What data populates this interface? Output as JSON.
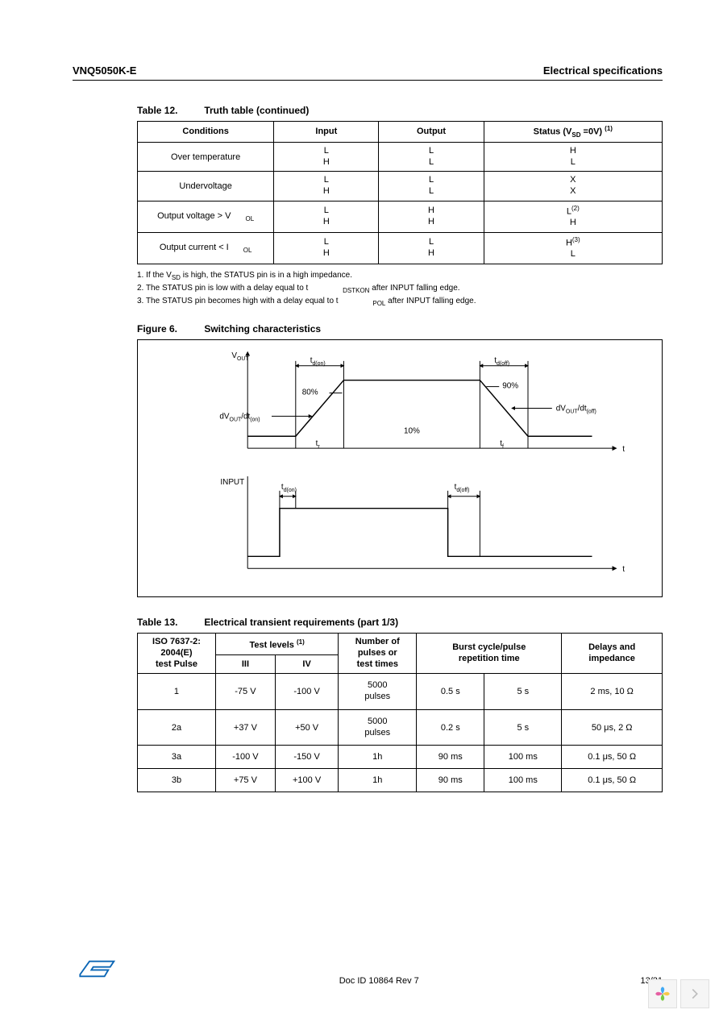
{
  "header": {
    "left": "VNQ5050K-E",
    "right": "Electrical specifications"
  },
  "table12": {
    "caption_label": "Table 12.",
    "caption_text": "Truth table (continued)",
    "headers": {
      "conditions": "Conditions",
      "input": "Input",
      "output": "Output",
      "status": "Status (V",
      "status_sub": "SD",
      "status_tail": " =0V)",
      "status_sup": "(1)"
    },
    "rows": [
      {
        "cond": "Over temperature",
        "in": [
          "L",
          "H"
        ],
        "out": [
          "L",
          "L"
        ],
        "stat": [
          "H",
          "L"
        ],
        "stat_sup": [
          "",
          ""
        ]
      },
      {
        "cond": "Undervoltage",
        "in": [
          "L",
          "H"
        ],
        "out": [
          "L",
          "L"
        ],
        "stat": [
          "X",
          "X"
        ],
        "stat_sup": [
          "",
          ""
        ]
      },
      {
        "cond_pre": "Output voltage > V",
        "cond_sub": "OL",
        "in": [
          "L",
          "H"
        ],
        "out": [
          "H",
          "H"
        ],
        "stat": [
          "L",
          "H"
        ],
        "stat_sup": [
          "(2)",
          ""
        ]
      },
      {
        "cond_pre": "Output current < I",
        "cond_sub": "OL",
        "in": [
          "L",
          "H"
        ],
        "out": [
          "L",
          "H"
        ],
        "stat": [
          "H",
          "L"
        ],
        "stat_sup": [
          "(3)",
          ""
        ]
      }
    ],
    "footnotes": {
      "n1_a": "1.   If the V",
      "n1_sub": "SD",
      "n1_b": " is high, the STATUS pin is in a high impedance.",
      "n2_a": "2.   The STATUS pin is low with a delay equal to t",
      "n2_sub": "DSTKON",
      "n2_b": " after INPUT falling edge.",
      "n3_a": "3.   The STATUS pin becomes high with a delay equal to t",
      "n3_sub": "POL",
      "n3_b": " after INPUT falling edge."
    }
  },
  "figure6": {
    "caption_label": "Figure 6.",
    "caption_text": "Switching characteristics",
    "labels": {
      "vout": "V",
      "vout_sub": "OUT",
      "input": "INPUT",
      "t": "t",
      "tdon": "t",
      "tdon_sub": "d(on)",
      "tdoff": "t",
      "tdoff_sub": "d(off)",
      "tr": "t",
      "tf": "t",
      "tr_sub": "r",
      "tf_sub": "f",
      "p80": "80%",
      "p90": "90%",
      "p10": "10%",
      "dvdt_on_a": "dV",
      "dvdt_on_b": "/dt",
      "dvdt_on_sub1": "OUT",
      "dvdt_on_sub2": "(on)",
      "dvdt_off_a": "dV",
      "dvdt_off_b": "/dt",
      "dvdt_off_sub1": "OUT",
      "dvdt_off_sub2": "(off)"
    }
  },
  "table13": {
    "caption_label": "Table 13.",
    "caption_text": "Electrical transient requirements (part 1/3)",
    "headers": {
      "pulse_a": "ISO 7637-2:",
      "pulse_b": "2004(E)",
      "pulse_c": "test Pulse",
      "levels": "Test levels",
      "levels_sup": "(1)",
      "l3": "III",
      "l4": "IV",
      "num_a": "Number of",
      "num_b": "pulses or",
      "num_c": "test times",
      "burst_a": "Burst cycle/pulse",
      "burst_b": "repetition time",
      "delay_a": "Delays and",
      "delay_b": "impedance"
    },
    "rows": [
      {
        "p": "1",
        "l3": "-75 V",
        "l4": "-100 V",
        "num": "5000\npulses",
        "b1": "0.5 s",
        "b2": "5 s",
        "d": "2 ms, 10 Ω"
      },
      {
        "p": "2a",
        "l3": "+37 V",
        "l4": "+50 V",
        "num": "5000\npulses",
        "b1": "0.2 s",
        "b2": "5 s",
        "d": "50 μs, 2 Ω"
      },
      {
        "p": "3a",
        "l3": "-100 V",
        "l4": "-150 V",
        "num": "1h",
        "b1": "90 ms",
        "b2": "100 ms",
        "d": "0.1 μs, 50 Ω"
      },
      {
        "p": "3b",
        "l3": "+75 V",
        "l4": "+100 V",
        "num": "1h",
        "b1": "90 ms",
        "b2": "100 ms",
        "d": "0.1 μs, 50 Ω"
      }
    ]
  },
  "footer": {
    "docid": "Doc ID 10864 Rev 7",
    "pageno": "13/31"
  },
  "colors": {
    "st_blue": "#0b66b5",
    "petal_blue": "#3fa9f5",
    "petal_yellow": "#f7c948",
    "petal_green": "#7ac943",
    "petal_pink": "#e55fa3",
    "chev": "#bdbdbd"
  }
}
